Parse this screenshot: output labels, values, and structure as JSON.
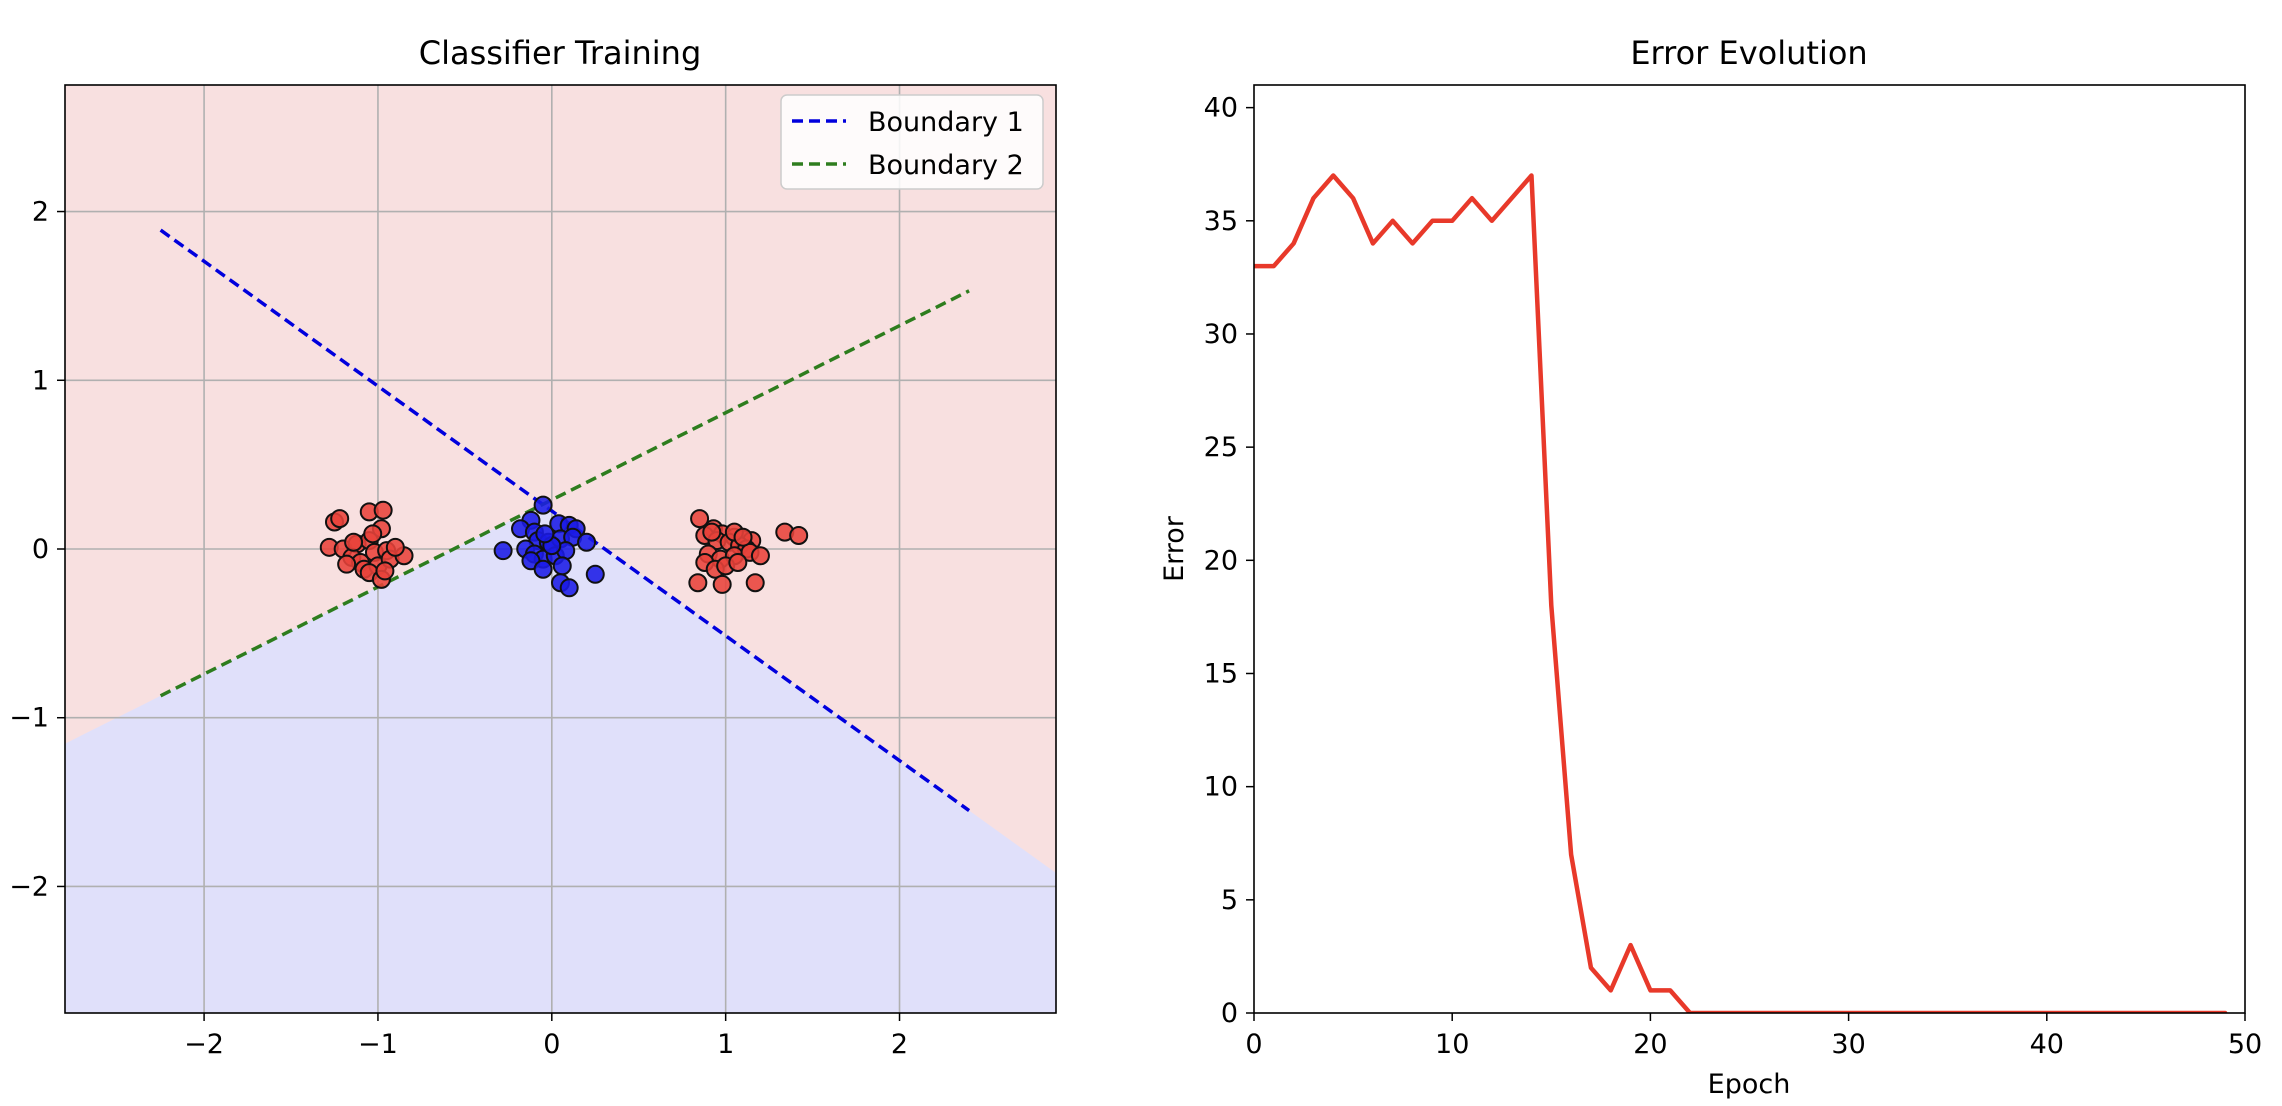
{
  "chart_data": [
    {
      "type": "scatter",
      "title": "Classifier Training",
      "xlabel": "",
      "ylabel": "",
      "xlim": [
        -2.8,
        2.9
      ],
      "ylim": [
        -2.75,
        2.75
      ],
      "xticks": [
        "−2",
        "−1",
        "0",
        "1",
        "2"
      ],
      "yticks": [
        "−2",
        "−1",
        "0",
        "1",
        "2"
      ],
      "grid": true,
      "legend_position": "top-right",
      "region_colors": {
        "outer": "#f8e0e0",
        "inner": "#e0e0fa"
      },
      "boundaries": [
        {
          "name": "Boundary 1",
          "color": "#0000dd",
          "style": "dashed",
          "points": [
            [
              -2.25,
              1.89
            ],
            [
              2.4,
              -1.55
            ]
          ]
        },
        {
          "name": "Boundary 2",
          "color": "#2e7d1e",
          "style": "dashed",
          "points": [
            [
              -2.25,
              -0.87
            ],
            [
              2.4,
              1.53
            ]
          ]
        }
      ],
      "series": [
        {
          "class": "red",
          "color": "#e8423a",
          "points": [
            [
              -1.25,
              0.16
            ],
            [
              -1.22,
              0.18
            ],
            [
              -1.05,
              0.22
            ],
            [
              -0.97,
              0.23
            ],
            [
              -1.28,
              0.01
            ],
            [
              -1.2,
              0.0
            ],
            [
              -1.12,
              0.03
            ],
            [
              -1.05,
              0.05
            ],
            [
              -0.98,
              0.12
            ],
            [
              -1.02,
              -0.02
            ],
            [
              -0.95,
              -0.01
            ],
            [
              -1.15,
              -0.05
            ],
            [
              -1.1,
              -0.08
            ],
            [
              -1.08,
              -0.12
            ],
            [
              -1.0,
              -0.1
            ],
            [
              -0.93,
              -0.06
            ],
            [
              -0.85,
              -0.04
            ],
            [
              -1.05,
              -0.14
            ],
            [
              -0.98,
              -0.18
            ],
            [
              -1.18,
              -0.09
            ],
            [
              -0.9,
              0.01
            ],
            [
              -1.03,
              0.09
            ],
            [
              -0.96,
              -0.13
            ],
            [
              -1.14,
              0.04
            ],
            [
              0.85,
              0.18
            ],
            [
              0.93,
              0.12
            ],
            [
              0.98,
              0.09
            ],
            [
              1.05,
              0.07
            ],
            [
              1.1,
              0.06
            ],
            [
              1.15,
              0.05
            ],
            [
              0.88,
              0.08
            ],
            [
              0.95,
              0.05
            ],
            [
              1.02,
              0.04
            ],
            [
              1.08,
              0.02
            ],
            [
              1.12,
              0.0
            ],
            [
              0.9,
              -0.03
            ],
            [
              0.97,
              -0.06
            ],
            [
              1.05,
              -0.04
            ],
            [
              1.14,
              -0.02
            ],
            [
              1.2,
              -0.04
            ],
            [
              0.88,
              -0.08
            ],
            [
              0.94,
              -0.12
            ],
            [
              1.0,
              -0.1
            ],
            [
              1.07,
              -0.08
            ],
            [
              0.84,
              -0.2
            ],
            [
              0.98,
              -0.21
            ],
            [
              1.17,
              -0.2
            ],
            [
              1.34,
              0.1
            ],
            [
              1.42,
              0.08
            ],
            [
              1.05,
              0.1
            ],
            [
              0.92,
              0.1
            ],
            [
              1.1,
              0.07
            ]
          ]
        },
        {
          "class": "blue",
          "color": "#1a1ae6",
          "points": [
            [
              -0.05,
              0.26
            ],
            [
              -0.12,
              0.17
            ],
            [
              -0.18,
              0.12
            ],
            [
              -0.1,
              0.1
            ],
            [
              0.04,
              0.15
            ],
            [
              0.1,
              0.14
            ],
            [
              0.14,
              0.12
            ],
            [
              -0.08,
              0.05
            ],
            [
              -0.02,
              0.04
            ],
            [
              0.05,
              0.06
            ],
            [
              0.12,
              0.07
            ],
            [
              0.2,
              0.04
            ],
            [
              -0.28,
              -0.01
            ],
            [
              -0.15,
              0.0
            ],
            [
              -0.1,
              -0.03
            ],
            [
              -0.05,
              -0.06
            ],
            [
              0.02,
              -0.04
            ],
            [
              0.08,
              -0.01
            ],
            [
              -0.12,
              -0.07
            ],
            [
              -0.05,
              -0.12
            ],
            [
              0.06,
              -0.1
            ],
            [
              0.25,
              -0.15
            ],
            [
              0.05,
              -0.2
            ],
            [
              0.1,
              -0.23
            ],
            [
              0.0,
              0.02
            ],
            [
              -0.04,
              0.09
            ]
          ]
        }
      ]
    },
    {
      "type": "line",
      "title": "Error Evolution",
      "xlabel": "Epoch",
      "ylabel": "Error",
      "xlim": [
        0,
        50
      ],
      "ylim": [
        0,
        41
      ],
      "xticks": [
        "0",
        "10",
        "20",
        "30",
        "40",
        "50"
      ],
      "yticks": [
        "0",
        "5",
        "10",
        "15",
        "20",
        "25",
        "30",
        "35",
        "40"
      ],
      "grid": false,
      "series": [
        {
          "color": "#e8392a",
          "x": [
            0,
            1,
            2,
            3,
            4,
            5,
            6,
            7,
            8,
            9,
            10,
            11,
            12,
            13,
            14,
            15,
            16,
            17,
            18,
            19,
            20,
            21,
            22,
            23,
            24,
            25,
            26,
            27,
            28,
            29,
            30,
            31,
            32,
            33,
            34,
            35,
            36,
            37,
            38,
            39,
            40,
            41,
            42,
            43,
            44,
            45,
            46,
            47,
            48,
            49
          ],
          "values": [
            33,
            33,
            34,
            36,
            37,
            36,
            34,
            35,
            34,
            35,
            35,
            36,
            35,
            36,
            37,
            18,
            7,
            2,
            1,
            3,
            1,
            1,
            0,
            0,
            0,
            0,
            0,
            0,
            0,
            0,
            0,
            0,
            0,
            0,
            0,
            0,
            0,
            0,
            0,
            0,
            0,
            0,
            0,
            0,
            0,
            0,
            0,
            0,
            0,
            0
          ]
        }
      ]
    }
  ]
}
